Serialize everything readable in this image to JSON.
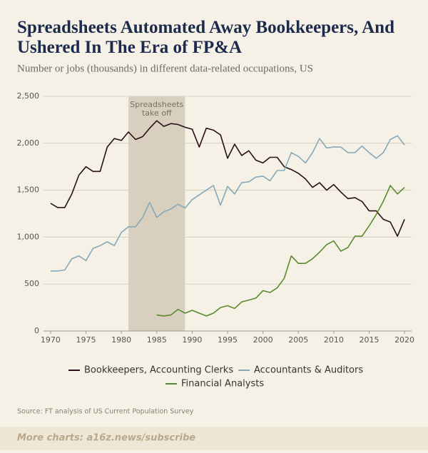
{
  "chart_data": {
    "type": "line",
    "title": "Spreadsheets Automated Away Bookkeepers, And Ushered In The Era of FP&A",
    "subtitle": "Number or jobs (thousands) in different data-related occupations, US",
    "annotation": [
      "Spreadsheets",
      "take off"
    ],
    "shade": [
      1981,
      1989
    ],
    "source": "Source: FT analysis of US Current Population Survey",
    "footer": "More charts: a16z.news/subscribe",
    "x": [
      1970,
      1971,
      1972,
      1973,
      1974,
      1975,
      1976,
      1977,
      1978,
      1979,
      1980,
      1981,
      1982,
      1983,
      1984,
      1985,
      1986,
      1987,
      1988,
      1989,
      1990,
      1991,
      1992,
      1993,
      1994,
      1995,
      1996,
      1997,
      1998,
      1999,
      2000,
      2001,
      2002,
      2003,
      2004,
      2005,
      2006,
      2007,
      2008,
      2009,
      2010,
      2011,
      2012,
      2013,
      2014,
      2015,
      2016,
      2017,
      2018,
      2019,
      2020
    ],
    "xlim": [
      1969,
      2021
    ],
    "xticks": [
      1970,
      1975,
      1980,
      1985,
      1990,
      1995,
      2000,
      2005,
      2010,
      2015,
      2020
    ],
    "ylim": [
      0,
      2500
    ],
    "yticks": [
      0,
      500,
      {
        "value": 1000,
        "label": "1,000"
      },
      {
        "value": 1500,
        "label": "1,500"
      },
      {
        "value": 2000,
        "label": "2,000"
      },
      {
        "value": 2500,
        "label": "2,500"
      }
    ],
    "grid": true,
    "series": [
      {
        "name": "Bookkeepers, Accounting Clerks",
        "color": "#2a0f16",
        "values": [
          1360,
          1315,
          1315,
          1460,
          1660,
          1750,
          1700,
          1700,
          1960,
          2050,
          2030,
          2120,
          2040,
          2070,
          2160,
          2240,
          2180,
          2210,
          2200,
          2170,
          2150,
          1960,
          2160,
          2140,
          2090,
          1840,
          1990,
          1870,
          1920,
          1820,
          1790,
          1850,
          1850,
          1750,
          1720,
          1680,
          1620,
          1530,
          1580,
          1500,
          1560,
          1480,
          1410,
          1420,
          1380,
          1280,
          1280,
          1190,
          1160,
          1010,
          1190
        ]
      },
      {
        "name": "Accountants & Auditors",
        "color": "#86a9b8",
        "values": [
          640,
          640,
          650,
          770,
          800,
          750,
          880,
          910,
          950,
          910,
          1050,
          1110,
          1110,
          1210,
          1370,
          1210,
          1270,
          1300,
          1350,
          1310,
          1400,
          1450,
          1500,
          1550,
          1340,
          1540,
          1460,
          1580,
          1590,
          1640,
          1650,
          1600,
          1710,
          1710,
          1900,
          1860,
          1790,
          1900,
          2050,
          1950,
          1960,
          1960,
          1900,
          1900,
          1970,
          1900,
          1840,
          1900,
          2040,
          2080,
          1980
        ]
      },
      {
        "name": "Financial Analysts",
        "color": "#5a8a2e",
        "values": [
          null,
          null,
          null,
          null,
          null,
          null,
          null,
          null,
          null,
          null,
          null,
          null,
          null,
          null,
          null,
          170,
          160,
          170,
          230,
          190,
          220,
          190,
          160,
          190,
          250,
          270,
          240,
          310,
          330,
          350,
          430,
          410,
          460,
          560,
          800,
          720,
          720,
          770,
          840,
          920,
          960,
          850,
          890,
          1010,
          1010,
          1120,
          1240,
          1380,
          1550,
          1460,
          1530
        ]
      }
    ]
  }
}
